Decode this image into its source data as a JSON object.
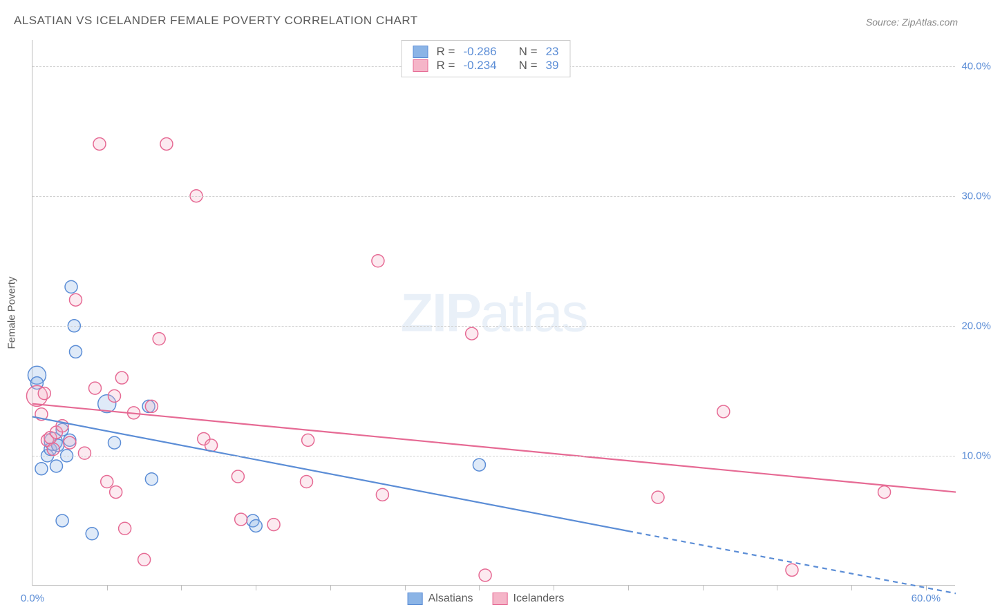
{
  "title": "ALSATIAN VS ICELANDER FEMALE POVERTY CORRELATION CHART",
  "source": "Source: ZipAtlas.com",
  "ylabel": "Female Poverty",
  "watermark": {
    "bold": "ZIP",
    "light": "atlas"
  },
  "chart": {
    "type": "scatter",
    "background_color": "#ffffff",
    "grid_color": "#d0d0d0",
    "axis_color": "#bdbdbd",
    "tick_label_color": "#5b8dd6",
    "text_color": "#5a5a5a",
    "xlim": [
      0,
      62
    ],
    "ylim": [
      0,
      42
    ],
    "ytick_values": [
      10,
      20,
      30,
      40
    ],
    "ytick_labels": [
      "10.0%",
      "20.0%",
      "30.0%",
      "40.0%"
    ],
    "xtick_minor": [
      5,
      10,
      15,
      20,
      25,
      30,
      35,
      40,
      45,
      50,
      55,
      60
    ],
    "xtick_labels": [
      {
        "x": 0,
        "label": "0.0%"
      },
      {
        "x": 60,
        "label": "60.0%"
      }
    ],
    "marker_radius_default": 9,
    "marker_radius_large": 13,
    "marker_stroke_width": 1.5,
    "marker_fill_opacity": 0.28,
    "series": [
      {
        "name": "Alsatians",
        "color_fill": "#8bb4e6",
        "color_stroke": "#5b8dd6",
        "R": "-0.286",
        "N": "23",
        "trend": {
          "x1": 0,
          "y1": 13.0,
          "x2": 40,
          "y2": 4.2,
          "x2_ext": 62,
          "y2_ext": -0.6,
          "width": 2.2
        },
        "points": [
          {
            "x": 0.3,
            "y": 16.2,
            "r": 13
          },
          {
            "x": 0.3,
            "y": 15.6
          },
          {
            "x": 1.0,
            "y": 10.0
          },
          {
            "x": 1.2,
            "y": 10.5
          },
          {
            "x": 1.4,
            "y": 11.1,
            "r": 13
          },
          {
            "x": 1.6,
            "y": 9.2
          },
          {
            "x": 2.6,
            "y": 23.0
          },
          {
            "x": 2.8,
            "y": 20.0
          },
          {
            "x": 2.9,
            "y": 18.0
          },
          {
            "x": 1.7,
            "y": 10.8
          },
          {
            "x": 2.0,
            "y": 5.0
          },
          {
            "x": 2.0,
            "y": 12.0
          },
          {
            "x": 2.3,
            "y": 10.0
          },
          {
            "x": 2.5,
            "y": 11.2
          },
          {
            "x": 4.0,
            "y": 4.0
          },
          {
            "x": 5.0,
            "y": 14.0,
            "r": 13
          },
          {
            "x": 5.5,
            "y": 11.0
          },
          {
            "x": 7.8,
            "y": 13.8
          },
          {
            "x": 8.0,
            "y": 8.2
          },
          {
            "x": 14.8,
            "y": 5.0
          },
          {
            "x": 15.0,
            "y": 4.6
          },
          {
            "x": 30.0,
            "y": 9.3
          },
          {
            "x": 0.6,
            "y": 9.0
          }
        ]
      },
      {
        "name": "Icelanders",
        "color_fill": "#f5b5c8",
        "color_stroke": "#e66a94",
        "R": "-0.234",
        "N": "39",
        "trend": {
          "x1": 0,
          "y1": 14.0,
          "x2": 62,
          "y2": 7.2,
          "width": 2.2
        },
        "points": [
          {
            "x": 0.3,
            "y": 14.6,
            "r": 15
          },
          {
            "x": 0.6,
            "y": 13.2
          },
          {
            "x": 0.8,
            "y": 14.8
          },
          {
            "x": 1.0,
            "y": 11.2
          },
          {
            "x": 1.2,
            "y": 11.4
          },
          {
            "x": 1.4,
            "y": 10.5
          },
          {
            "x": 1.6,
            "y": 11.8
          },
          {
            "x": 2.0,
            "y": 12.3
          },
          {
            "x": 2.5,
            "y": 11.0
          },
          {
            "x": 2.9,
            "y": 22.0
          },
          {
            "x": 3.5,
            "y": 10.2
          },
          {
            "x": 4.2,
            "y": 15.2
          },
          {
            "x": 4.5,
            "y": 34.0
          },
          {
            "x": 5.0,
            "y": 8.0
          },
          {
            "x": 5.5,
            "y": 14.6
          },
          {
            "x": 5.6,
            "y": 7.2
          },
          {
            "x": 6.0,
            "y": 16.0
          },
          {
            "x": 6.2,
            "y": 4.4
          },
          {
            "x": 6.8,
            "y": 13.3
          },
          {
            "x": 7.5,
            "y": 2.0
          },
          {
            "x": 8.0,
            "y": 13.8
          },
          {
            "x": 8.5,
            "y": 19.0
          },
          {
            "x": 9.0,
            "y": 34.0
          },
          {
            "x": 11.0,
            "y": 30.0
          },
          {
            "x": 11.5,
            "y": 11.3
          },
          {
            "x": 12.0,
            "y": 10.8
          },
          {
            "x": 13.8,
            "y": 8.4
          },
          {
            "x": 14.0,
            "y": 5.1
          },
          {
            "x": 16.2,
            "y": 4.7
          },
          {
            "x": 18.4,
            "y": 8.0
          },
          {
            "x": 18.5,
            "y": 11.2
          },
          {
            "x": 23.2,
            "y": 25.0
          },
          {
            "x": 23.5,
            "y": 7.0
          },
          {
            "x": 29.5,
            "y": 19.4
          },
          {
            "x": 30.4,
            "y": 0.8
          },
          {
            "x": 42.0,
            "y": 6.8
          },
          {
            "x": 46.4,
            "y": 13.4
          },
          {
            "x": 51.0,
            "y": 1.2
          },
          {
            "x": 57.2,
            "y": 7.2
          }
        ]
      }
    ]
  },
  "legend_top_prefix": {
    "R": "R =",
    "N": "N ="
  },
  "legend_bottom": [
    "Alsatians",
    "Icelanders"
  ]
}
